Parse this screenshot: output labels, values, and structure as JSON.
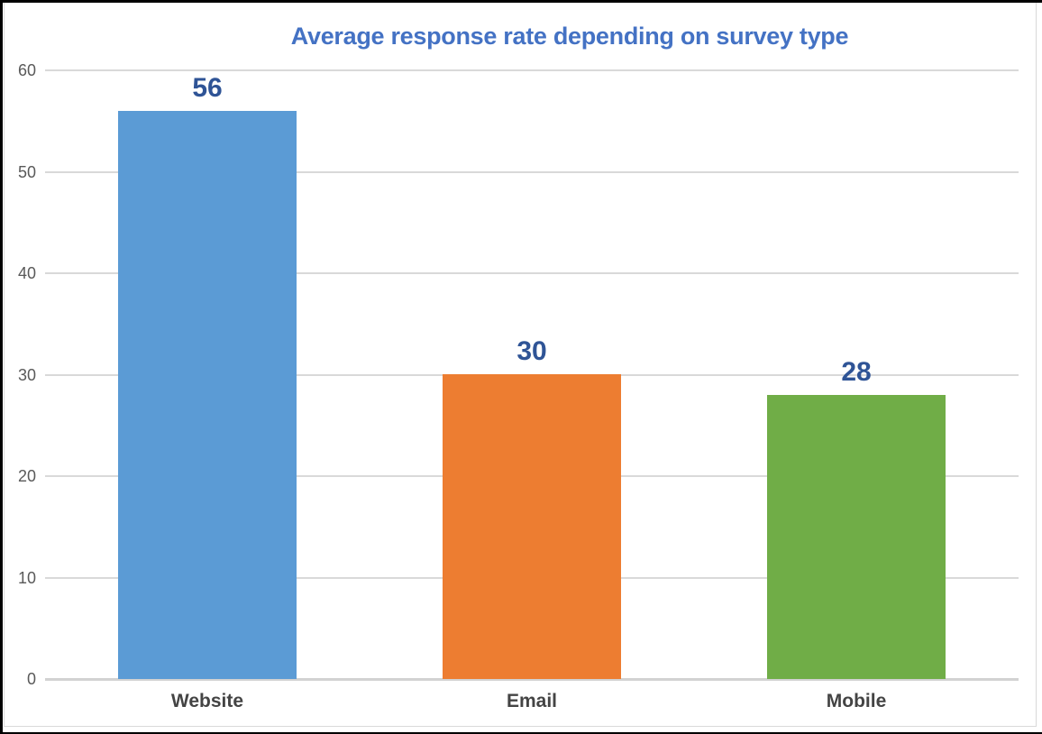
{
  "chart_data": {
    "type": "bar",
    "title": "Average response rate depending on survey type",
    "categories": [
      "Website",
      "Email",
      "Mobile"
    ],
    "values": [
      56,
      30,
      28
    ],
    "value_labels": [
      "56",
      "30",
      "28"
    ],
    "bar_colors": [
      "#5B9BD5",
      "#ED7D31",
      "#70AD47"
    ],
    "xlabel": "",
    "ylabel": "",
    "ylim": [
      0,
      60
    ],
    "yticks": [
      0,
      10,
      20,
      30,
      40,
      50,
      60
    ],
    "grid": true,
    "legend": "none",
    "colors": {
      "title": "#4472C4",
      "value_label": "#2F5496",
      "tick_label": "#595959",
      "category_label": "#444444",
      "gridline": "#D9D9D9",
      "axis_line": "#D2D2D2",
      "chart_border": "#D9D9D9",
      "screenshot_border": "#000000",
      "background": "#FFFFFF"
    }
  }
}
